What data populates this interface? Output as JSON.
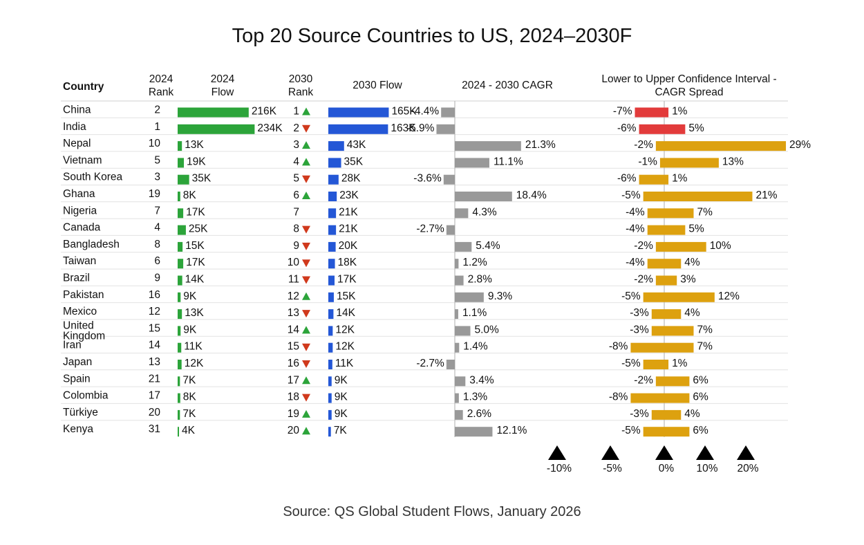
{
  "chart_data": {
    "type": "table",
    "title": "Top 20 Source Countries to US, 2024–2030F",
    "source": "Source: QS Global Student Flows, January 2026",
    "headers": {
      "country": "Country",
      "rank2024": [
        "2024",
        "Rank"
      ],
      "flow2024": [
        "2024",
        "Flow"
      ],
      "rank2030": [
        "2030",
        "Rank"
      ],
      "flow2030": "2030 Flow",
      "cagr": "2024 - 2030 CAGR",
      "ci": [
        "Lower to Upper Confidence Interval -",
        "CAGR Spread"
      ]
    },
    "colors": {
      "flow2024": "#2ca43a",
      "flow2030": "#2457d6",
      "cagr": "#999999",
      "ci_negative": "#e23b3b",
      "ci_positive": "#dda10f",
      "up": "#2ca43a",
      "down": "#d0391c"
    },
    "ci_axis": {
      "ticks": [
        -10,
        -5,
        0,
        10,
        20
      ],
      "tick_labels": [
        "-10%",
        "-5%",
        "0%",
        "10%",
        "20%"
      ]
    },
    "rows": [
      {
        "country": "China",
        "rank_2024": "2",
        "flow_2024": 216,
        "flow_2024_label": "216K",
        "rank_2030": "1",
        "trend": "up",
        "flow_2030": 165,
        "flow_2030_label": "165K",
        "cagr": -4.4,
        "cagr_label": "-4.4%",
        "ci_low": -7,
        "ci_high": 1,
        "ci_low_label": "-7%",
        "ci_high_label": "1%"
      },
      {
        "country": "India",
        "rank_2024": "1",
        "flow_2024": 234,
        "flow_2024_label": "234K",
        "rank_2030": "2",
        "trend": "down",
        "flow_2030": 163,
        "flow_2030_label": "163K",
        "cagr": -5.9,
        "cagr_label": "-5.9%",
        "ci_low": -6,
        "ci_high": 5,
        "ci_low_label": "-6%",
        "ci_high_label": "5%"
      },
      {
        "country": "Nepal",
        "rank_2024": "10",
        "flow_2024": 13,
        "flow_2024_label": "13K",
        "rank_2030": "3",
        "trend": "up",
        "flow_2030": 43,
        "flow_2030_label": "43K",
        "cagr": 21.3,
        "cagr_label": "21.3%",
        "ci_low": -2,
        "ci_high": 29,
        "ci_low_label": "-2%",
        "ci_high_label": "29%"
      },
      {
        "country": "Vietnam",
        "rank_2024": "5",
        "flow_2024": 19,
        "flow_2024_label": "19K",
        "rank_2030": "4",
        "trend": "up",
        "flow_2030": 35,
        "flow_2030_label": "35K",
        "cagr": 11.1,
        "cagr_label": "11.1%",
        "ci_low": -1,
        "ci_high": 13,
        "ci_low_label": "-1%",
        "ci_high_label": "13%"
      },
      {
        "country": "South Korea",
        "rank_2024": "3",
        "flow_2024": 35,
        "flow_2024_label": "35K",
        "rank_2030": "5",
        "trend": "down",
        "flow_2030": 28,
        "flow_2030_label": "28K",
        "cagr": -3.6,
        "cagr_label": "-3.6%",
        "ci_low": -6,
        "ci_high": 1,
        "ci_low_label": "-6%",
        "ci_high_label": "1%"
      },
      {
        "country": "Ghana",
        "rank_2024": "19",
        "flow_2024": 8,
        "flow_2024_label": "8K",
        "rank_2030": "6",
        "trend": "up",
        "flow_2030": 23,
        "flow_2030_label": "23K",
        "cagr": 18.4,
        "cagr_label": "18.4%",
        "ci_low": -5,
        "ci_high": 21,
        "ci_low_label": "-5%",
        "ci_high_label": "21%"
      },
      {
        "country": "Nigeria",
        "rank_2024": "7",
        "flow_2024": 17,
        "flow_2024_label": "17K",
        "rank_2030": "7",
        "trend": "none",
        "flow_2030": 21,
        "flow_2030_label": "21K",
        "cagr": 4.3,
        "cagr_label": "4.3%",
        "ci_low": -4,
        "ci_high": 7,
        "ci_low_label": "-4%",
        "ci_high_label": "7%"
      },
      {
        "country": "Canada",
        "rank_2024": "4",
        "flow_2024": 25,
        "flow_2024_label": "25K",
        "rank_2030": "8",
        "trend": "down",
        "flow_2030": 21,
        "flow_2030_label": "21K",
        "cagr": -2.7,
        "cagr_label": "-2.7%",
        "ci_low": -4,
        "ci_high": 5,
        "ci_low_label": "-4%",
        "ci_high_label": "5%"
      },
      {
        "country": "Bangladesh",
        "rank_2024": "8",
        "flow_2024": 15,
        "flow_2024_label": "15K",
        "rank_2030": "9",
        "trend": "down",
        "flow_2030": 20,
        "flow_2030_label": "20K",
        "cagr": 5.4,
        "cagr_label": "5.4%",
        "ci_low": -2,
        "ci_high": 10,
        "ci_low_label": "-2%",
        "ci_high_label": "10%"
      },
      {
        "country": "Taiwan",
        "rank_2024": "6",
        "flow_2024": 17,
        "flow_2024_label": "17K",
        "rank_2030": "10",
        "trend": "down",
        "flow_2030": 18,
        "flow_2030_label": "18K",
        "cagr": 1.2,
        "cagr_label": "1.2%",
        "ci_low": -4,
        "ci_high": 4,
        "ci_low_label": "-4%",
        "ci_high_label": "4%"
      },
      {
        "country": "Brazil",
        "rank_2024": "9",
        "flow_2024": 14,
        "flow_2024_label": "14K",
        "rank_2030": "11",
        "trend": "down",
        "flow_2030": 17,
        "flow_2030_label": "17K",
        "cagr": 2.8,
        "cagr_label": "2.8%",
        "ci_low": -2,
        "ci_high": 3,
        "ci_low_label": "-2%",
        "ci_high_label": "3%"
      },
      {
        "country": "Pakistan",
        "rank_2024": "16",
        "flow_2024": 9,
        "flow_2024_label": "9K",
        "rank_2030": "12",
        "trend": "up",
        "flow_2030": 15,
        "flow_2030_label": "15K",
        "cagr": 9.3,
        "cagr_label": "9.3%",
        "ci_low": -5,
        "ci_high": 12,
        "ci_low_label": "-5%",
        "ci_high_label": "12%"
      },
      {
        "country": "Mexico",
        "rank_2024": "12",
        "flow_2024": 13,
        "flow_2024_label": "13K",
        "rank_2030": "13",
        "trend": "down",
        "flow_2030": 14,
        "flow_2030_label": "14K",
        "cagr": 1.1,
        "cagr_label": "1.1%",
        "ci_low": -3,
        "ci_high": 4,
        "ci_low_label": "-3%",
        "ci_high_label": "4%"
      },
      {
        "country": "United Kingdom",
        "country_lines": [
          "United",
          "Kingdom"
        ],
        "rank_2024": "15",
        "flow_2024": 9,
        "flow_2024_label": "9K",
        "rank_2030": "14",
        "trend": "up",
        "flow_2030": 12,
        "flow_2030_label": "12K",
        "cagr": 5.0,
        "cagr_label": "5.0%",
        "ci_low": -3,
        "ci_high": 7,
        "ci_low_label": "-3%",
        "ci_high_label": "7%"
      },
      {
        "country": "Iran",
        "rank_2024": "14",
        "flow_2024": 11,
        "flow_2024_label": "11K",
        "rank_2030": "15",
        "trend": "down",
        "flow_2030": 12,
        "flow_2030_label": "12K",
        "cagr": 1.4,
        "cagr_label": "1.4%",
        "ci_low": -8,
        "ci_high": 7,
        "ci_low_label": "-8%",
        "ci_high_label": "7%"
      },
      {
        "country": "Japan",
        "rank_2024": "13",
        "flow_2024": 12,
        "flow_2024_label": "12K",
        "rank_2030": "16",
        "trend": "down",
        "flow_2030": 11,
        "flow_2030_label": "11K",
        "cagr": -2.7,
        "cagr_label": "-2.7%",
        "ci_low": -5,
        "ci_high": 1,
        "ci_low_label": "-5%",
        "ci_high_label": "1%"
      },
      {
        "country": "Spain",
        "rank_2024": "21",
        "flow_2024": 7,
        "flow_2024_label": "7K",
        "rank_2030": "17",
        "trend": "up",
        "flow_2030": 9,
        "flow_2030_label": "9K",
        "cagr": 3.4,
        "cagr_label": "3.4%",
        "ci_low": -2,
        "ci_high": 6,
        "ci_low_label": "-2%",
        "ci_high_label": "6%"
      },
      {
        "country": "Colombia",
        "rank_2024": "17",
        "flow_2024": 8,
        "flow_2024_label": "8K",
        "rank_2030": "18",
        "trend": "down",
        "flow_2030": 9,
        "flow_2030_label": "9K",
        "cagr": 1.3,
        "cagr_label": "1.3%",
        "ci_low": -8,
        "ci_high": 6,
        "ci_low_label": "-8%",
        "ci_high_label": "6%"
      },
      {
        "country": "Türkiye",
        "rank_2024": "20",
        "flow_2024": 7,
        "flow_2024_label": "7K",
        "rank_2030": "19",
        "trend": "up",
        "flow_2030": 9,
        "flow_2030_label": "9K",
        "cagr": 2.6,
        "cagr_label": "2.6%",
        "ci_low": -3,
        "ci_high": 4,
        "ci_low_label": "-3%",
        "ci_high_label": "4%"
      },
      {
        "country": "Kenya",
        "rank_2024": "31",
        "flow_2024": 4,
        "flow_2024_label": "4K",
        "rank_2030": "20",
        "trend": "up",
        "flow_2030": 7,
        "flow_2030_label": "7K",
        "cagr": 12.1,
        "cagr_label": "12.1%",
        "ci_low": -5,
        "ci_high": 6,
        "ci_low_label": "-5%",
        "ci_high_label": "6%"
      }
    ]
  }
}
